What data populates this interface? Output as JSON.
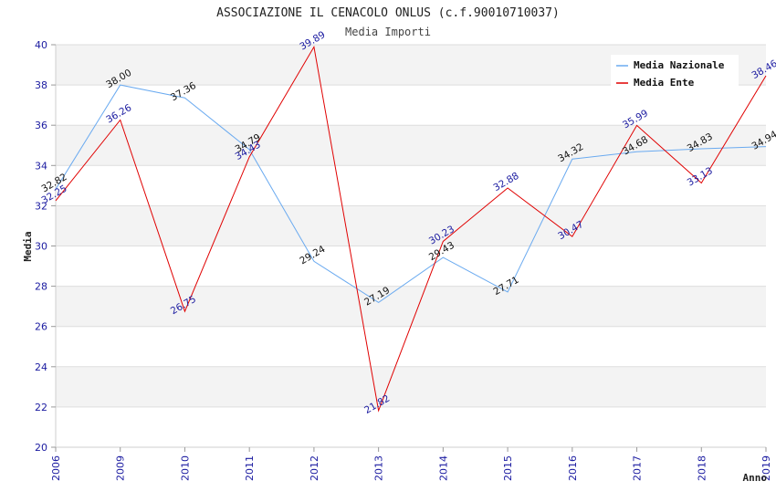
{
  "chart_data": {
    "type": "line",
    "title": "ASSOCIAZIONE IL CENACOLO ONLUS (c.f.90010710037)",
    "subtitle": "Media Importi",
    "xlabel": "Anno",
    "ylabel": "Media",
    "ylim": [
      20,
      40
    ],
    "yticks": [
      "20",
      "22",
      "24",
      "26",
      "28",
      "30",
      "32",
      "34",
      "36",
      "38",
      "40"
    ],
    "categories": [
      "2006",
      "2009",
      "2010",
      "2011",
      "2012",
      "2013",
      "2014",
      "2015",
      "2016",
      "2017",
      "2018",
      "2019"
    ],
    "series": [
      {
        "name": "Media Nazionale",
        "color": "#6aaaf0",
        "label_color": "#111111",
        "values": [
          32.82,
          38.0,
          37.36,
          34.79,
          29.24,
          27.19,
          29.43,
          27.71,
          34.32,
          34.68,
          34.83,
          34.94
        ],
        "labels": [
          "32.82",
          "38.00",
          "37.36",
          "34.79",
          "29.24",
          "27.19",
          "29.43",
          "27.71",
          "34.32",
          "34.68",
          "34.83",
          "34.94"
        ]
      },
      {
        "name": "Media Ente",
        "color": "#e00000",
        "label_color": "#1a1aa0",
        "values": [
          32.25,
          36.26,
          26.75,
          34.43,
          39.89,
          21.82,
          30.23,
          32.88,
          30.47,
          35.99,
          33.13,
          38.46
        ],
        "labels": [
          "32.25",
          "36.26",
          "26.75",
          "34.43",
          "39.89",
          "21.82",
          "30.23",
          "32.88",
          "30.47",
          "35.99",
          "33.13",
          "38.46"
        ]
      }
    ],
    "grid": true,
    "legend": "top-right"
  }
}
